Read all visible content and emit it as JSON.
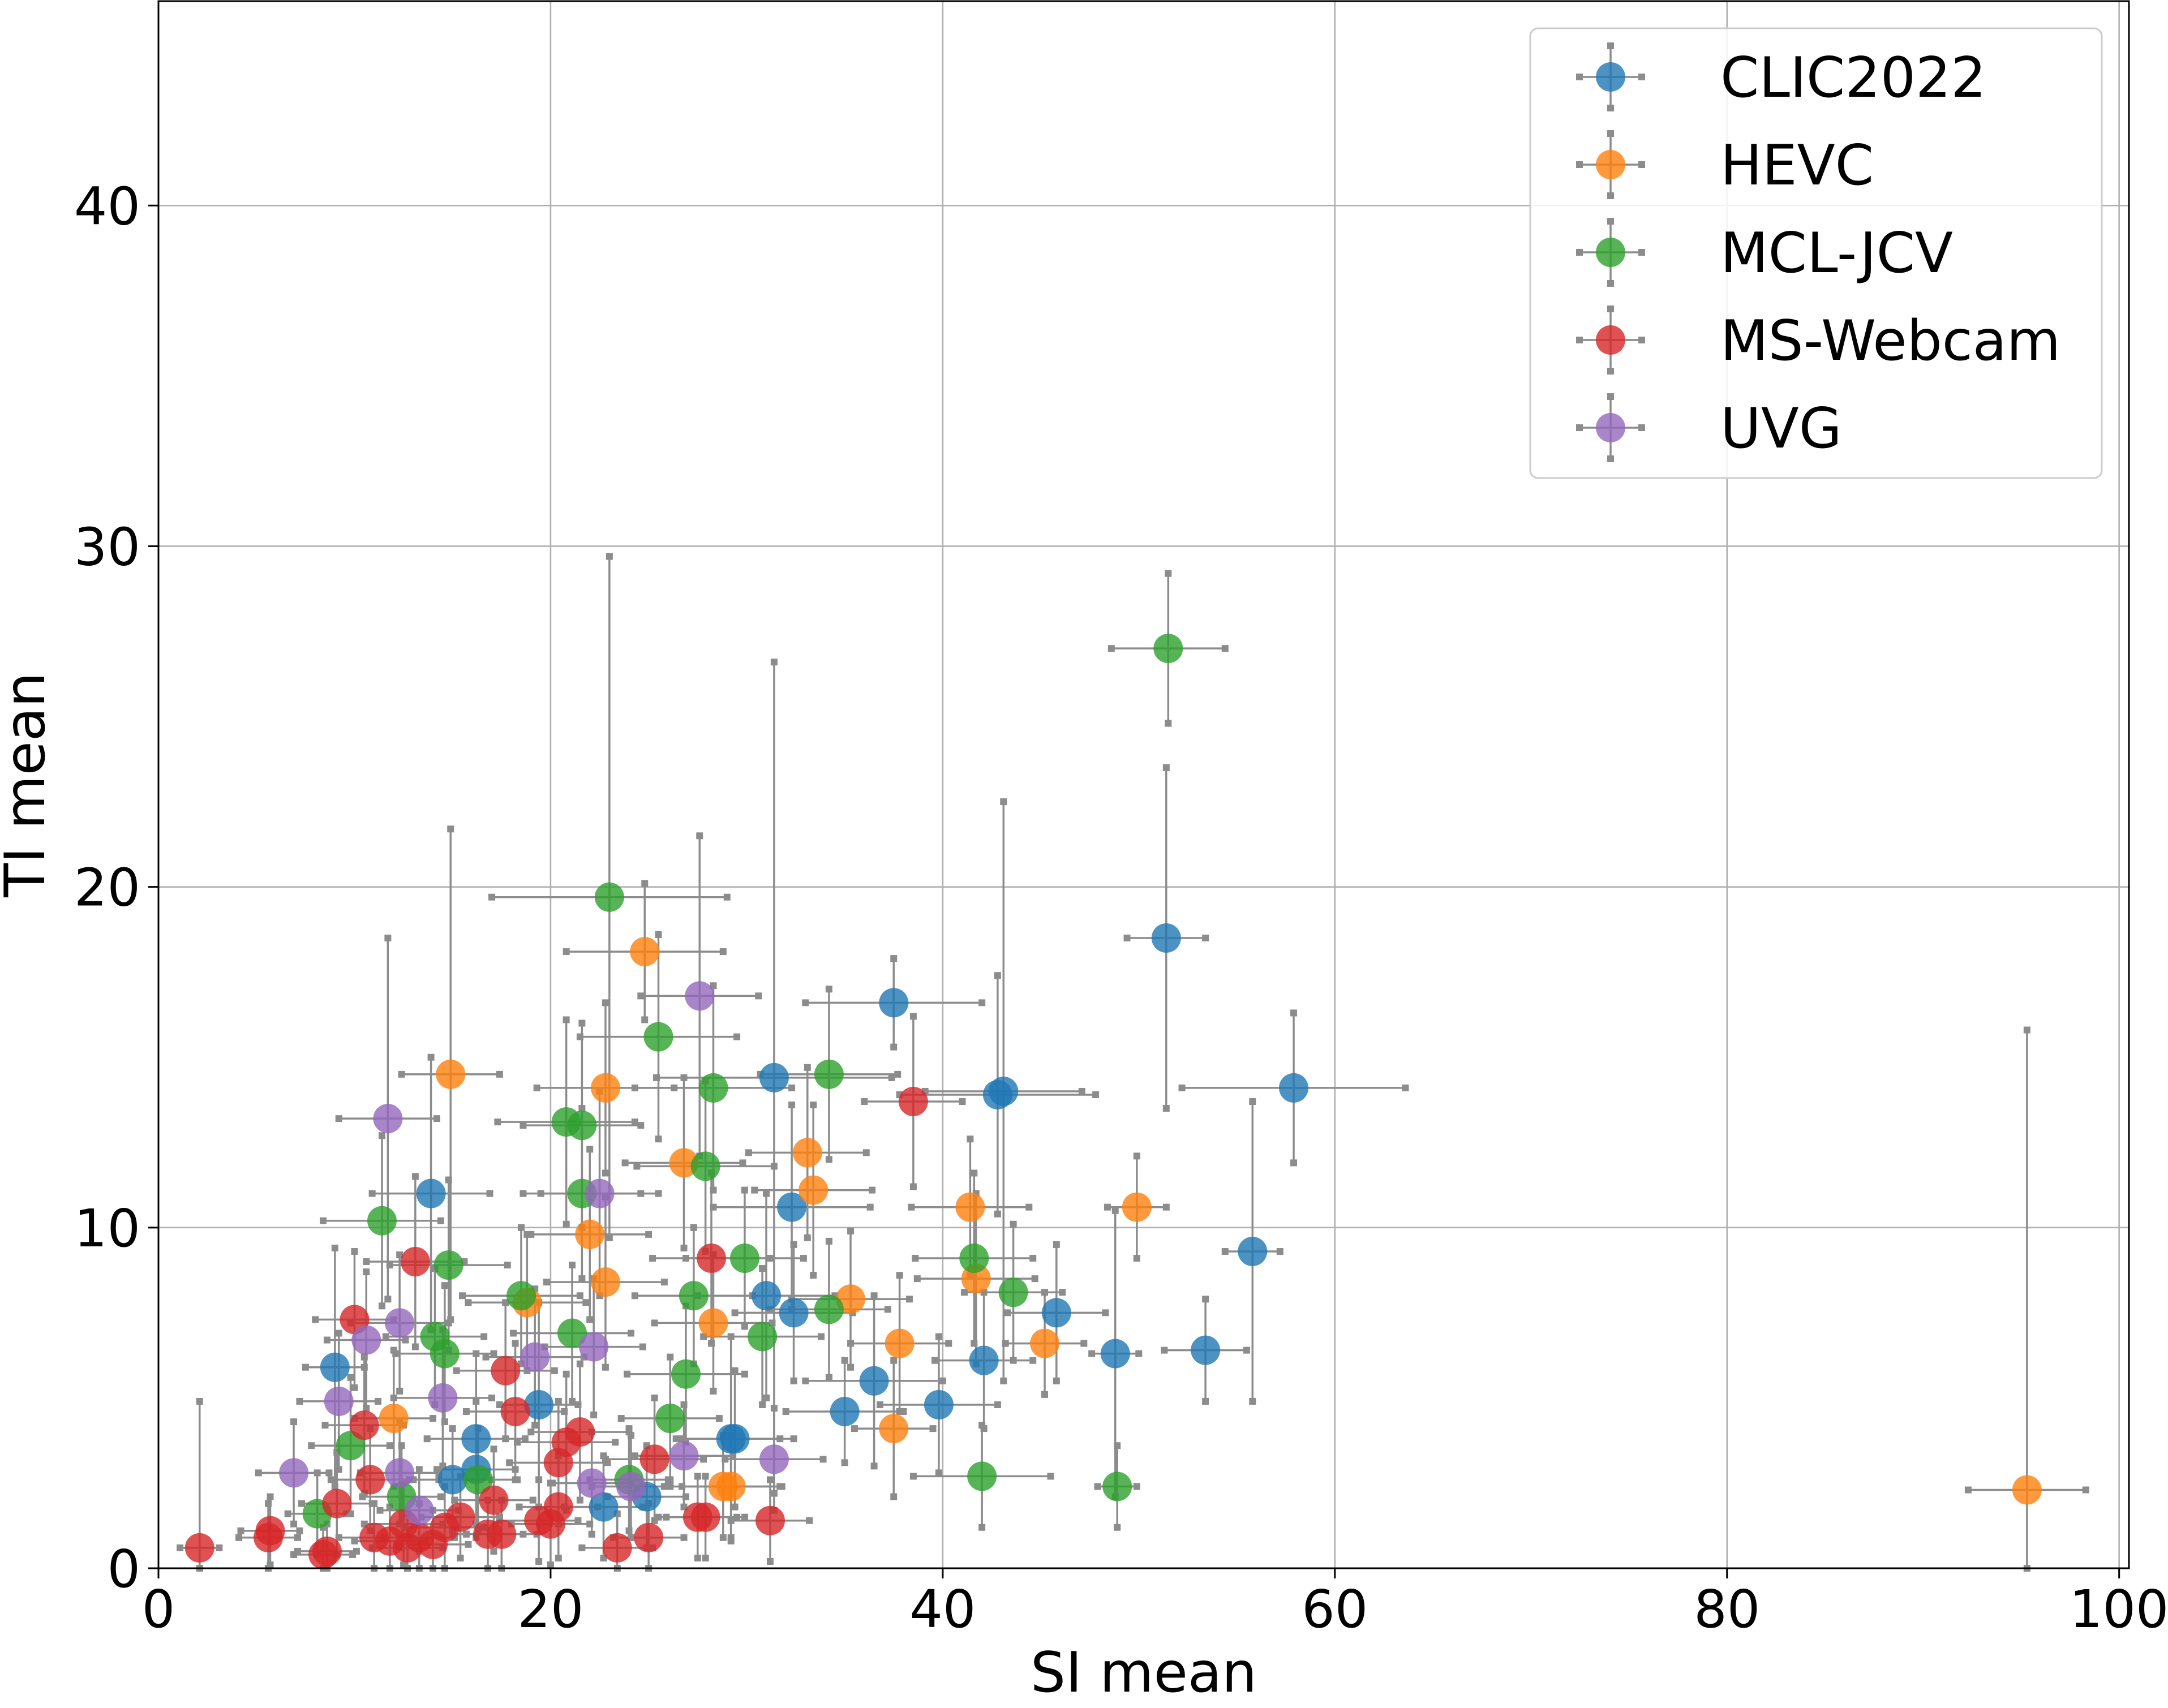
{
  "chart_data": {
    "type": "scatter",
    "title": "",
    "xlabel": "SI mean",
    "ylabel": "TI mean",
    "xlim": [
      0,
      100.5
    ],
    "ylim": [
      0,
      46
    ],
    "xticks": [
      0,
      20,
      40,
      60,
      80,
      100
    ],
    "yticks": [
      0,
      10,
      20,
      30,
      40
    ],
    "x_tick_labels": [
      "0",
      "20",
      "40",
      "60",
      "80",
      "100"
    ],
    "y_tick_labels": [
      "0",
      "10",
      "20",
      "30",
      "40"
    ],
    "grid": true,
    "legend_position": "top-right",
    "error_bars": true,
    "series": [
      {
        "name": "CLIC2022",
        "color": "#1f77b4",
        "points": [
          {
            "x": 51.4,
            "y": 18.5,
            "xerr": 2.0,
            "yerr": 5.0
          },
          {
            "x": 57.9,
            "y": 14.1,
            "xerr": 5.7,
            "yerr": 2.2
          },
          {
            "x": 37.5,
            "y": 16.6,
            "xerr": 4.5,
            "yerr": 1.3
          },
          {
            "x": 43.1,
            "y": 14.0,
            "xerr": 4.0,
            "yerr": 8.5
          },
          {
            "x": 42.8,
            "y": 13.9,
            "xerr": 5.0,
            "yerr": 3.5
          },
          {
            "x": 31.4,
            "y": 14.4,
            "xerr": 6.0,
            "yerr": 12.2
          },
          {
            "x": 32.3,
            "y": 10.6,
            "xerr": 4.0,
            "yerr": 3.0
          },
          {
            "x": 13.9,
            "y": 11.0,
            "xerr": 3.0,
            "yerr": 4.0
          },
          {
            "x": 55.8,
            "y": 9.3,
            "xerr": 1.4,
            "yerr": 4.4
          },
          {
            "x": 53.4,
            "y": 6.4,
            "xerr": 2.1,
            "yerr": 1.5
          },
          {
            "x": 48.8,
            "y": 6.3,
            "xerr": 1.2,
            "yerr": 4.2
          },
          {
            "x": 45.8,
            "y": 7.5,
            "xerr": 2.5,
            "yerr": 2.0
          },
          {
            "x": 42.1,
            "y": 6.1,
            "xerr": 2.5,
            "yerr": 2.0
          },
          {
            "x": 39.8,
            "y": 4.8,
            "xerr": 3.0,
            "yerr": 2.0
          },
          {
            "x": 36.5,
            "y": 5.5,
            "xerr": 3.5,
            "yerr": 2.5
          },
          {
            "x": 35.0,
            "y": 4.6,
            "xerr": 3.0,
            "yerr": 1.5
          },
          {
            "x": 32.4,
            "y": 7.5,
            "xerr": 3.0,
            "yerr": 2.0
          },
          {
            "x": 31.0,
            "y": 8.0,
            "xerr": 3.5,
            "yerr": 3.0
          },
          {
            "x": 29.4,
            "y": 3.8,
            "xerr": 3.0,
            "yerr": 2.0
          },
          {
            "x": 29.2,
            "y": 3.8,
            "xerr": 2.5,
            "yerr": 3.0
          },
          {
            "x": 9.0,
            "y": 5.9,
            "xerr": 1.5,
            "yerr": 3.5
          },
          {
            "x": 19.4,
            "y": 4.8,
            "xerr": 2.0,
            "yerr": 3.0
          },
          {
            "x": 16.2,
            "y": 3.8,
            "xerr": 2.5,
            "yerr": 2.5
          },
          {
            "x": 16.2,
            "y": 2.9,
            "xerr": 2.0,
            "yerr": 2.0
          },
          {
            "x": 15.0,
            "y": 2.6,
            "xerr": 2.0,
            "yerr": 1.5
          },
          {
            "x": 22.7,
            "y": 1.8,
            "xerr": 2.0,
            "yerr": 1.5
          },
          {
            "x": 24.9,
            "y": 2.1,
            "xerr": 2.0,
            "yerr": 1.5
          }
        ]
      },
      {
        "name": "HEVC",
        "color": "#ff7f0e",
        "points": [
          {
            "x": 95.3,
            "y": 2.3,
            "xerr": 3.0,
            "yerr": 13.5
          },
          {
            "x": 49.9,
            "y": 10.6,
            "xerr": 1.5,
            "yerr": 1.5
          },
          {
            "x": 41.4,
            "y": 10.6,
            "xerr": 3.0,
            "yerr": 2.0
          },
          {
            "x": 41.7,
            "y": 8.5,
            "xerr": 3.0,
            "yerr": 2.5
          },
          {
            "x": 45.2,
            "y": 6.6,
            "xerr": 2.0,
            "yerr": 1.5
          },
          {
            "x": 37.8,
            "y": 6.6,
            "xerr": 2.5,
            "yerr": 2.0
          },
          {
            "x": 37.5,
            "y": 4.1,
            "xerr": 2.0,
            "yerr": 2.0
          },
          {
            "x": 35.3,
            "y": 7.9,
            "xerr": 3.0,
            "yerr": 2.0
          },
          {
            "x": 33.4,
            "y": 11.1,
            "xerr": 3.0,
            "yerr": 2.5
          },
          {
            "x": 33.1,
            "y": 12.2,
            "xerr": 3.0,
            "yerr": 2.5
          },
          {
            "x": 28.3,
            "y": 7.2,
            "xerr": 3.0,
            "yerr": 2.0
          },
          {
            "x": 28.8,
            "y": 2.4,
            "xerr": 3.0,
            "yerr": 1.5
          },
          {
            "x": 29.2,
            "y": 2.4,
            "xerr": 2.5,
            "yerr": 1.5
          },
          {
            "x": 26.8,
            "y": 11.9,
            "xerr": 3.0,
            "yerr": 2.5
          },
          {
            "x": 24.8,
            "y": 18.1,
            "xerr": 4.0,
            "yerr": 2.0
          },
          {
            "x": 22.8,
            "y": 14.1,
            "xerr": 3.5,
            "yerr": 2.5
          },
          {
            "x": 22.0,
            "y": 9.8,
            "xerr": 3.0,
            "yerr": 2.5
          },
          {
            "x": 22.8,
            "y": 8.4,
            "xerr": 3.0,
            "yerr": 2.5
          },
          {
            "x": 18.8,
            "y": 7.8,
            "xerr": 3.0,
            "yerr": 2.0
          },
          {
            "x": 14.9,
            "y": 14.5,
            "xerr": 2.5,
            "yerr": 7.2
          },
          {
            "x": 12.0,
            "y": 4.4,
            "xerr": 2.0,
            "yerr": 2.0
          }
        ]
      },
      {
        "name": "MCL-JCV",
        "color": "#2ca02c",
        "points": [
          {
            "x": 51.5,
            "y": 27.0,
            "xerr": 2.9,
            "yerr": 2.2
          },
          {
            "x": 23.0,
            "y": 19.7,
            "xerr": 6.0,
            "yerr": 10.0
          },
          {
            "x": 25.5,
            "y": 15.6,
            "xerr": 4.0,
            "yerr": 3.0
          },
          {
            "x": 28.3,
            "y": 14.1,
            "xerr": 4.0,
            "yerr": 3.0
          },
          {
            "x": 34.2,
            "y": 14.5,
            "xerr": 3.5,
            "yerr": 2.5
          },
          {
            "x": 20.8,
            "y": 13.1,
            "xerr": 3.5,
            "yerr": 3.0
          },
          {
            "x": 21.6,
            "y": 13.0,
            "xerr": 3.0,
            "yerr": 3.0
          },
          {
            "x": 27.9,
            "y": 11.8,
            "xerr": 3.5,
            "yerr": 2.5
          },
          {
            "x": 21.6,
            "y": 11.0,
            "xerr": 3.0,
            "yerr": 2.5
          },
          {
            "x": 11.4,
            "y": 10.2,
            "xerr": 3.0,
            "yerr": 2.5
          },
          {
            "x": 14.8,
            "y": 8.9,
            "xerr": 3.0,
            "yerr": 2.5
          },
          {
            "x": 29.9,
            "y": 9.1,
            "xerr": 3.0,
            "yerr": 2.0
          },
          {
            "x": 41.6,
            "y": 9.1,
            "xerr": 3.0,
            "yerr": 2.5
          },
          {
            "x": 43.6,
            "y": 8.1,
            "xerr": 2.5,
            "yerr": 2.0
          },
          {
            "x": 34.2,
            "y": 7.6,
            "xerr": 3.0,
            "yerr": 2.0
          },
          {
            "x": 27.3,
            "y": 8.0,
            "xerr": 3.0,
            "yerr": 2.0
          },
          {
            "x": 18.5,
            "y": 8.0,
            "xerr": 3.0,
            "yerr": 2.0
          },
          {
            "x": 21.1,
            "y": 6.9,
            "xerr": 3.0,
            "yerr": 2.0
          },
          {
            "x": 30.8,
            "y": 6.8,
            "xerr": 3.0,
            "yerr": 2.0
          },
          {
            "x": 14.1,
            "y": 6.8,
            "xerr": 2.5,
            "yerr": 2.0
          },
          {
            "x": 14.6,
            "y": 6.3,
            "xerr": 2.5,
            "yerr": 2.0
          },
          {
            "x": 26.9,
            "y": 5.7,
            "xerr": 3.0,
            "yerr": 2.0
          },
          {
            "x": 26.1,
            "y": 4.4,
            "xerr": 2.5,
            "yerr": 1.8
          },
          {
            "x": 9.8,
            "y": 3.6,
            "xerr": 2.0,
            "yerr": 2.0
          },
          {
            "x": 16.3,
            "y": 2.6,
            "xerr": 2.0,
            "yerr": 1.5
          },
          {
            "x": 12.4,
            "y": 2.1,
            "xerr": 2.0,
            "yerr": 1.5
          },
          {
            "x": 8.1,
            "y": 1.6,
            "xerr": 1.5,
            "yerr": 1.2
          },
          {
            "x": 24.0,
            "y": 2.6,
            "xerr": 2.0,
            "yerr": 1.5
          },
          {
            "x": 42.0,
            "y": 2.7,
            "xerr": 3.5,
            "yerr": 1.5
          },
          {
            "x": 48.9,
            "y": 2.4,
            "xerr": 1.0,
            "yerr": 1.2
          }
        ]
      },
      {
        "name": "MS-Webcam",
        "color": "#d62728",
        "points": [
          {
            "x": 38.5,
            "y": 13.7,
            "xerr": 2.5,
            "yerr": 2.5
          },
          {
            "x": 28.2,
            "y": 9.1,
            "xerr": 3.0,
            "yerr": 2.5
          },
          {
            "x": 13.1,
            "y": 9.0,
            "xerr": 2.5,
            "yerr": 2.5
          },
          {
            "x": 10.0,
            "y": 7.3,
            "xerr": 2.0,
            "yerr": 2.0
          },
          {
            "x": 17.7,
            "y": 5.8,
            "xerr": 2.5,
            "yerr": 2.0
          },
          {
            "x": 18.2,
            "y": 4.6,
            "xerr": 2.5,
            "yerr": 2.0
          },
          {
            "x": 10.5,
            "y": 4.2,
            "xerr": 2.0,
            "yerr": 2.0
          },
          {
            "x": 21.5,
            "y": 4.0,
            "xerr": 2.5,
            "yerr": 2.0
          },
          {
            "x": 20.8,
            "y": 3.7,
            "xerr": 2.5,
            "yerr": 2.0
          },
          {
            "x": 20.4,
            "y": 3.1,
            "xerr": 2.5,
            "yerr": 1.8
          },
          {
            "x": 25.3,
            "y": 3.2,
            "xerr": 2.5,
            "yerr": 1.8
          },
          {
            "x": 9.1,
            "y": 1.9,
            "xerr": 1.8,
            "yerr": 1.5
          },
          {
            "x": 10.8,
            "y": 2.6,
            "xerr": 2.0,
            "yerr": 1.5
          },
          {
            "x": 17.1,
            "y": 2.0,
            "xerr": 2.0,
            "yerr": 1.5
          },
          {
            "x": 20.4,
            "y": 1.8,
            "xerr": 2.0,
            "yerr": 1.5
          },
          {
            "x": 19.4,
            "y": 1.4,
            "xerr": 2.0,
            "yerr": 1.2
          },
          {
            "x": 20.0,
            "y": 1.3,
            "xerr": 2.0,
            "yerr": 1.2
          },
          {
            "x": 27.5,
            "y": 1.5,
            "xerr": 2.0,
            "yerr": 1.2
          },
          {
            "x": 27.9,
            "y": 1.5,
            "xerr": 2.0,
            "yerr": 1.2
          },
          {
            "x": 31.2,
            "y": 1.4,
            "xerr": 2.0,
            "yerr": 1.2
          },
          {
            "x": 15.4,
            "y": 1.5,
            "xerr": 2.0,
            "yerr": 1.2
          },
          {
            "x": 14.6,
            "y": 1.2,
            "xerr": 2.0,
            "yerr": 1.2
          },
          {
            "x": 12.5,
            "y": 1.3,
            "xerr": 2.0,
            "yerr": 1.2
          },
          {
            "x": 11.0,
            "y": 0.9,
            "xerr": 1.8,
            "yerr": 1.0
          },
          {
            "x": 11.8,
            "y": 0.8,
            "xerr": 1.8,
            "yerr": 1.0
          },
          {
            "x": 12.7,
            "y": 0.6,
            "xerr": 1.8,
            "yerr": 1.0
          },
          {
            "x": 13.3,
            "y": 0.9,
            "xerr": 1.8,
            "yerr": 1.0
          },
          {
            "x": 14.0,
            "y": 0.7,
            "xerr": 1.8,
            "yerr": 1.0
          },
          {
            "x": 16.8,
            "y": 1.0,
            "xerr": 1.8,
            "yerr": 1.0
          },
          {
            "x": 17.5,
            "y": 1.0,
            "xerr": 1.8,
            "yerr": 1.0
          },
          {
            "x": 5.7,
            "y": 1.1,
            "xerr": 1.5,
            "yerr": 1.0
          },
          {
            "x": 5.6,
            "y": 0.9,
            "xerr": 1.5,
            "yerr": 1.0
          },
          {
            "x": 8.6,
            "y": 0.5,
            "xerr": 1.5,
            "yerr": 0.8
          },
          {
            "x": 8.4,
            "y": 0.4,
            "xerr": 1.5,
            "yerr": 0.8
          },
          {
            "x": 2.1,
            "y": 0.6,
            "xerr": 1.0,
            "yerr": 4.3
          },
          {
            "x": 23.4,
            "y": 0.6,
            "xerr": 1.8,
            "yerr": 1.0
          },
          {
            "x": 25.0,
            "y": 0.9,
            "xerr": 1.8,
            "yerr": 1.0
          }
        ]
      },
      {
        "name": "UVG",
        "color": "#9467bd",
        "points": [
          {
            "x": 27.6,
            "y": 16.8,
            "xerr": 3.0,
            "yerr": 4.7
          },
          {
            "x": 11.7,
            "y": 13.2,
            "xerr": 2.5,
            "yerr": 5.3
          },
          {
            "x": 22.5,
            "y": 11.0,
            "xerr": 3.0,
            "yerr": 3.0
          },
          {
            "x": 12.3,
            "y": 7.2,
            "xerr": 2.5,
            "yerr": 2.0
          },
          {
            "x": 10.6,
            "y": 6.7,
            "xerr": 2.0,
            "yerr": 2.0
          },
          {
            "x": 22.2,
            "y": 6.5,
            "xerr": 2.5,
            "yerr": 2.0
          },
          {
            "x": 19.2,
            "y": 6.2,
            "xerr": 2.5,
            "yerr": 2.0
          },
          {
            "x": 14.5,
            "y": 5.0,
            "xerr": 2.5,
            "yerr": 2.0
          },
          {
            "x": 9.2,
            "y": 4.9,
            "xerr": 2.0,
            "yerr": 2.0
          },
          {
            "x": 6.9,
            "y": 2.8,
            "xerr": 1.8,
            "yerr": 1.5
          },
          {
            "x": 12.3,
            "y": 2.8,
            "xerr": 2.0,
            "yerr": 1.5
          },
          {
            "x": 22.1,
            "y": 2.5,
            "xerr": 2.0,
            "yerr": 1.5
          },
          {
            "x": 24.1,
            "y": 2.4,
            "xerr": 2.0,
            "yerr": 1.5
          },
          {
            "x": 26.8,
            "y": 3.3,
            "xerr": 2.5,
            "yerr": 1.5
          },
          {
            "x": 31.4,
            "y": 3.2,
            "xerr": 2.5,
            "yerr": 1.5
          },
          {
            "x": 13.3,
            "y": 1.7,
            "xerr": 2.0,
            "yerr": 1.2
          }
        ]
      }
    ]
  }
}
